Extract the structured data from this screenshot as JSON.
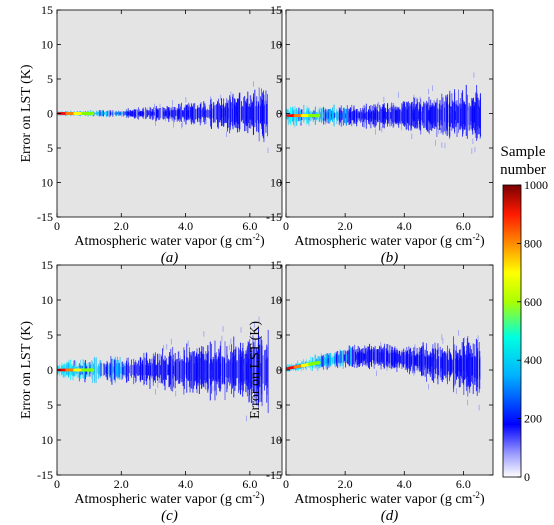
{
  "figure": {
    "colorbar": {
      "title_line1": "Sample",
      "title_line2": "number",
      "ticks": [
        "1000",
        "800",
        "600",
        "400",
        "200",
        "0"
      ],
      "range": [
        0,
        1000
      ],
      "colormap": [
        "#0000ff",
        "#00bfff",
        "#00ffff",
        "#7fff00",
        "#ffff00",
        "#ff7f00",
        "#ff0000",
        "#8b0000"
      ]
    },
    "plot_background": "#e4e4e4"
  },
  "chart_data": [
    {
      "type": "heatmap",
      "panel_label": "(a)",
      "xlabel": "Atmospheric water vapor (g cm",
      "xlabel_sup": "-2",
      "xlabel_close": ")",
      "ylabel": "Error on LST (K)",
      "xlim": [
        0,
        7
      ],
      "ylim": [
        -15,
        15
      ],
      "xticks": [
        "0",
        "2.0",
        "4.0",
        "6.0"
      ],
      "yticks": [
        "15",
        "10",
        "5",
        "0",
        "5",
        "10",
        "-15"
      ],
      "spread_profile": [
        [
          0.0,
          0.3
        ],
        [
          1.0,
          0.4
        ],
        [
          2.0,
          0.5
        ],
        [
          3.0,
          0.9
        ],
        [
          4.0,
          1.3
        ],
        [
          5.0,
          2.0
        ],
        [
          6.0,
          3.0
        ],
        [
          6.6,
          3.5
        ]
      ],
      "mean_bias": 0.0,
      "max_density_sample_number": 1000
    },
    {
      "type": "heatmap",
      "panel_label": "(b)",
      "xlabel": "Atmospheric water vapor (g cm",
      "xlabel_sup": "-2",
      "xlabel_close": ")",
      "ylabel": "",
      "xlim": [
        0,
        7
      ],
      "ylim": [
        -15,
        15
      ],
      "xticks": [
        "0",
        "2.0",
        "4.0",
        "6.0"
      ],
      "yticks": [
        "15",
        "10",
        "5",
        "0",
        "5",
        "10",
        "-15"
      ],
      "spread_profile": [
        [
          0.0,
          1.5
        ],
        [
          1.0,
          1.2
        ],
        [
          2.0,
          1.3
        ],
        [
          3.0,
          1.6
        ],
        [
          4.0,
          2.0
        ],
        [
          5.0,
          2.6
        ],
        [
          6.0,
          3.5
        ],
        [
          6.6,
          4.0
        ]
      ],
      "mean_bias": -0.3,
      "max_density_sample_number": 1000
    },
    {
      "type": "heatmap",
      "panel_label": "(c)",
      "xlabel": "Atmospheric water vapor (g cm",
      "xlabel_sup": "-2",
      "xlabel_close": ")",
      "ylabel": "Error on LST (K)",
      "xlim": [
        0,
        7
      ],
      "ylim": [
        -15,
        15
      ],
      "xticks": [
        "0",
        "2.0",
        "4.0",
        "6.0"
      ],
      "yticks": [
        "15",
        "10",
        "5",
        "0",
        "5",
        "10",
        "-15"
      ],
      "spread_profile": [
        [
          0.0,
          1.0
        ],
        [
          1.0,
          1.5
        ],
        [
          2.0,
          1.8
        ],
        [
          3.0,
          2.2
        ],
        [
          4.0,
          3.0
        ],
        [
          5.0,
          3.5
        ],
        [
          6.0,
          4.5
        ],
        [
          6.6,
          5.0
        ]
      ],
      "mean_bias": 0.0,
      "max_density_sample_number": 1000
    },
    {
      "type": "heatmap",
      "panel_label": "(d)",
      "xlabel": "Atmospheric water vapor (g cm",
      "xlabel_sup": "-2",
      "xlabel_close": ")",
      "ylabel": "Error on LST (K)",
      "xlim": [
        0,
        7
      ],
      "ylim": [
        -15,
        15
      ],
      "xticks": [
        "0",
        "2.0",
        "4.0",
        "6.0"
      ],
      "yticks": [
        "15",
        "10",
        "5",
        "0",
        "5",
        "10",
        "-15"
      ],
      "spread_profile": [
        [
          0.0,
          0.5
        ],
        [
          1.0,
          1.0
        ],
        [
          2.0,
          1.4
        ],
        [
          3.0,
          1.6
        ],
        [
          4.0,
          1.8
        ],
        [
          5.0,
          2.5
        ],
        [
          6.0,
          3.5
        ],
        [
          6.6,
          4.0
        ]
      ],
      "bias_profile": [
        [
          0.0,
          0.2
        ],
        [
          1.0,
          1.0
        ],
        [
          2.0,
          1.8
        ],
        [
          3.0,
          2.0
        ],
        [
          4.0,
          1.6
        ],
        [
          5.0,
          1.0
        ],
        [
          6.0,
          0.5
        ],
        [
          6.6,
          0.3
        ]
      ],
      "max_density_sample_number": 1000
    }
  ]
}
